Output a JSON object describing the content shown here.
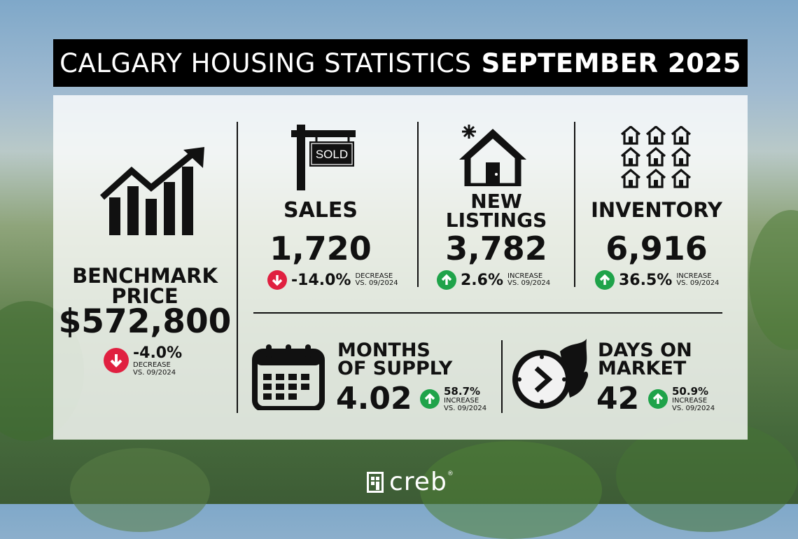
{
  "title": {
    "regular": "CALGARY HOUSING STATISTICS",
    "bold": "SEPTEMBER 2025"
  },
  "benchmark": {
    "heading_line1": "BENCHMARK",
    "heading_line2": "PRICE",
    "value": "$572,800",
    "change": "-4.0%",
    "direction": "DECREASE",
    "comparison": "VS. 09/2024",
    "icon": "rising-bar-chart-icon"
  },
  "sales": {
    "heading": "SALES",
    "value": "1,720",
    "change": "-14.0%",
    "direction": "DECREASE",
    "comparison": "VS. 09/2024",
    "icon": "sold-sign-icon",
    "sign_text": "SOLD"
  },
  "new_listings": {
    "heading_line1": "NEW",
    "heading_line2": "LISTINGS",
    "value": "3,782",
    "change": "2.6%",
    "direction": "INCREASE",
    "comparison": "VS. 09/2024",
    "icon": "new-house-icon"
  },
  "inventory": {
    "heading": "INVENTORY",
    "value": "6,916",
    "change": "36.5%",
    "direction": "INCREASE",
    "comparison": "VS. 09/2024",
    "icon": "houses-grid-icon"
  },
  "months_supply": {
    "heading_line1": "MONTHS",
    "heading_line2": "OF SUPPLY",
    "value": "4.02",
    "change": "58.7%",
    "direction": "INCREASE",
    "comparison": "VS. 09/2024",
    "icon": "calendar-icon"
  },
  "days_on_market": {
    "heading_line1": "DAYS ON",
    "heading_line2": "MARKET",
    "value": "42",
    "change": "50.9%",
    "direction": "INCREASE",
    "comparison": "VS. 09/2024",
    "icon": "flaming-clock-icon"
  },
  "logo": {
    "text": "creb",
    "mark": "®"
  },
  "colors": {
    "increase": "#1fa34a",
    "decrease": "#e02040",
    "title_bg": "#000000"
  }
}
